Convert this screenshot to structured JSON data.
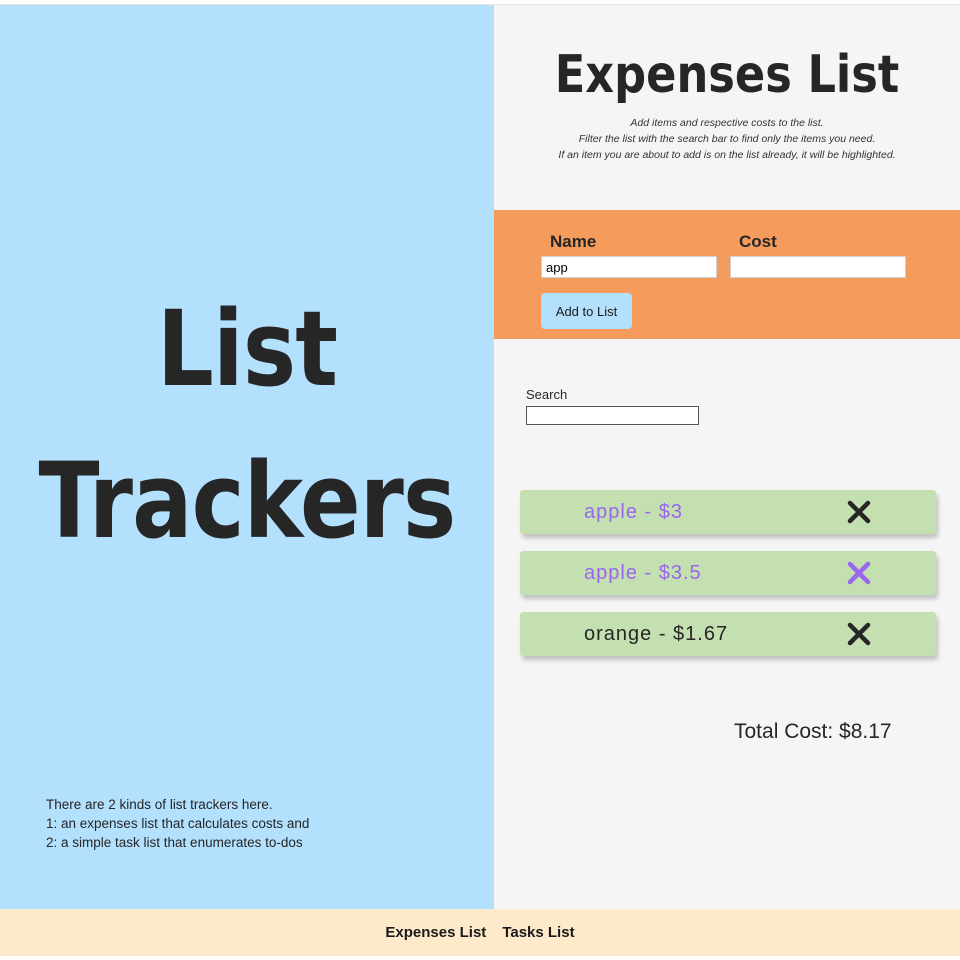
{
  "hero": {
    "title_line1": "List",
    "title_line2": "Trackers",
    "intro": [
      "There are 2 kinds of list trackers here.",
      "1: an expenses list that calculates costs and",
      "2: a simple task list that enumerates to-dos"
    ]
  },
  "expenses": {
    "title": "Expenses List",
    "subtitle": [
      "Add items and respective costs to the list.",
      "Filter the list with the search bar to find only the items you need.",
      "If an item you are about to add is on the list already, it will be highlighted."
    ],
    "form": {
      "name_label": "Name",
      "name_value": "app",
      "cost_label": "Cost",
      "cost_value": "",
      "add_button_label": "Add to List"
    },
    "search": {
      "label": "Search",
      "value": ""
    },
    "items": [
      {
        "text": "apple - $3",
        "highlighted": true,
        "delete_icon": "close-x-icon"
      },
      {
        "text": "apple - $3.5",
        "highlighted": true,
        "delete_icon": "close-x-icon"
      },
      {
        "text": "orange - $1.67",
        "highlighted": false,
        "delete_icon": "close-x-icon"
      }
    ],
    "total": "Total Cost: $8.17"
  },
  "footer": {
    "links": [
      "Expenses List",
      "Tasks List"
    ]
  },
  "colors": {
    "left_panel": "#b2e0fd",
    "form_band": "#f59c5c",
    "item_bg": "#c4dfb0",
    "highlight_text": "#9966ee",
    "footer_bg": "#feeaca",
    "button_bg": "#b2e0fd"
  }
}
